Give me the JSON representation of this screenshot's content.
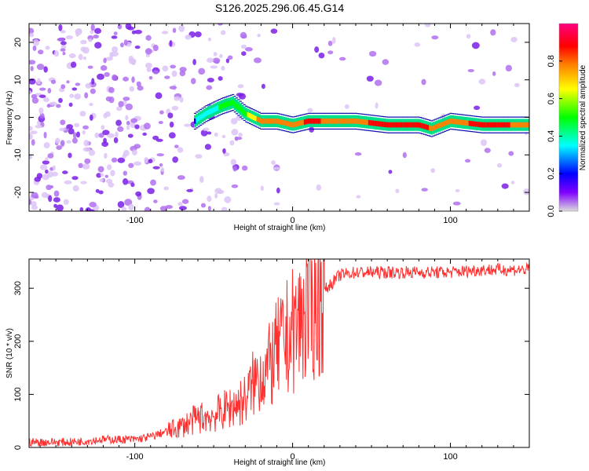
{
  "chart_data": [
    {
      "type": "heatmap",
      "title": "S126.2025.296.06.45.G14",
      "xlabel": "Height of straight line (km)",
      "ylabel": "Frequency (Hz)",
      "xlim": [
        -167,
        150
      ],
      "ylim": [
        -25,
        25
      ],
      "xticks": [
        -100,
        0,
        100
      ],
      "yticks": [
        -20,
        -10,
        0,
        10,
        20
      ],
      "colorbar": {
        "label": "Normalized spectral amplitude",
        "range": [
          0,
          1
        ],
        "ticks": [
          0.0,
          0.2,
          0.4,
          0.6,
          0.8
        ],
        "stops": [
          "#dcdcdc",
          "#8000ff",
          "#0000ff",
          "#00ffff",
          "#00ff00",
          "#ffff00",
          "#ff8000",
          "#ff0000",
          "#ff0080"
        ]
      },
      "ridge": {
        "description": "frequency centre of the strong spectral line",
        "x": [
          -62,
          -55,
          -45,
          -38,
          -30,
          -20,
          -10,
          0,
          10,
          20,
          40,
          60,
          80,
          88,
          100,
          120,
          150
        ],
        "freq": [
          -1,
          1,
          3,
          4,
          1,
          -1,
          -1,
          -2,
          -1,
          -1,
          -1,
          -2,
          -2,
          -3,
          -1,
          -2,
          -2
        ],
        "amplitude": [
          0.3,
          0.4,
          0.45,
          0.5,
          0.55,
          0.75,
          0.8,
          0.7,
          0.85,
          0.8,
          0.75,
          0.9,
          0.85,
          0.8,
          0.7,
          0.9,
          0.75
        ]
      }
    },
    {
      "type": "line",
      "xlabel": "Height of straight line (km)",
      "ylabel": "SNR (10 * v/v)",
      "xlim": [
        -167,
        150
      ],
      "ylim": [
        0,
        355
      ],
      "xticks": [
        -100,
        0,
        100
      ],
      "yticks": [
        0,
        100,
        200,
        300
      ],
      "color": "#ff3030",
      "series": [
        {
          "name": "SNR",
          "x": [
            -167,
            -140,
            -120,
            -100,
            -90,
            -80,
            -70,
            -60,
            -50,
            -40,
            -30,
            -25,
            -20,
            -15,
            -10,
            -5,
            0,
            5,
            10,
            15,
            20,
            25,
            30,
            40,
            60,
            80,
            100,
            120,
            150
          ],
          "values": [
            10,
            10,
            15,
            15,
            20,
            30,
            40,
            55,
            60,
            75,
            90,
            120,
            140,
            150,
            180,
            200,
            220,
            240,
            260,
            275,
            295,
            310,
            325,
            330,
            330,
            330,
            330,
            335,
            335
          ]
        }
      ]
    }
  ]
}
